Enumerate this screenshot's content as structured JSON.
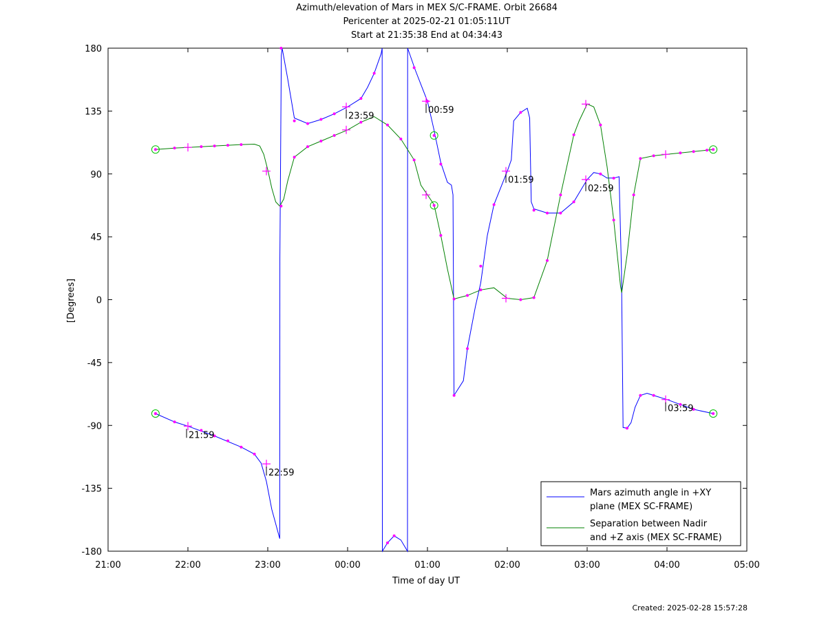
{
  "chart_data": {
    "type": "line",
    "title": [
      "Azimuth/elevation of Mars in MEX S/C-FRAME.  Orbit 26684",
      "Pericenter at 2025-02-21 01:05:11UT",
      "Start at 21:35:38 End at 04:34:43"
    ],
    "xlabel": "Time of day UT",
    "ylabel": "[Degrees]",
    "xlim": [
      21,
      29
    ],
    "ylim": [
      -180,
      180
    ],
    "x_ticks": [
      21,
      22,
      23,
      24,
      25,
      26,
      27,
      28,
      29
    ],
    "x_tick_labels": [
      "21:00",
      "22:00",
      "23:00",
      "00:00",
      "01:00",
      "02:00",
      "03:00",
      "04:00",
      "05:00"
    ],
    "y_ticks": [
      180,
      135,
      90,
      45,
      0,
      -45,
      -90,
      -135,
      -180
    ],
    "y_tick_labels": [
      "180",
      "135",
      "90",
      "45",
      "0",
      "-45",
      "-90",
      "-135",
      "-180"
    ],
    "legend": {
      "position": "bottom-right",
      "entries": [
        [
          "Mars azimuth angle in +XY",
          "plane (MEX SC-FRAME)"
        ],
        [
          "Separation between Nadir",
          "and +Z axis (MEX SC-FRAME)"
        ]
      ]
    },
    "series": [
      {
        "name": "Mars azimuth angle in +XY plane (MEX SC-FRAME)",
        "color": "#0000ff",
        "points": [
          [
            21.594,
            -81.5
          ],
          [
            21.833,
            -87.5
          ],
          [
            22.0,
            -90.5
          ],
          [
            22.333,
            -97.5
          ],
          [
            22.667,
            -105.5
          ],
          [
            22.833,
            -110.5
          ],
          [
            22.917,
            -117.0
          ],
          [
            22.983,
            -130.0
          ],
          [
            23.05,
            -150.0
          ],
          [
            23.15,
            -171.0
          ],
          [
            23.152,
            30.0
          ],
          [
            23.17,
            175.0
          ],
          [
            23.18,
            180.0
          ],
          [
            23.25,
            158.0
          ],
          [
            23.333,
            130.0
          ],
          [
            23.5,
            126.0
          ],
          [
            23.667,
            129.0
          ],
          [
            23.833,
            133.0
          ],
          [
            24.0,
            138.0
          ],
          [
            24.167,
            144.0
          ],
          [
            24.25,
            152.0
          ],
          [
            24.333,
            162.0
          ],
          [
            24.42,
            176.0
          ],
          [
            24.433,
            180.0
          ],
          [
            24.435,
            -180.0
          ],
          [
            24.5,
            -174.0
          ],
          [
            24.583,
            -169.0
          ],
          [
            24.667,
            -172.0
          ],
          [
            24.75,
            -180.0
          ],
          [
            24.752,
            180.0
          ],
          [
            24.85,
            164.0
          ],
          [
            25.0,
            142.0
          ],
          [
            25.08,
            122.0
          ],
          [
            25.167,
            98.0
          ],
          [
            25.25,
            84.0
          ],
          [
            25.3,
            82.0
          ],
          [
            25.32,
            75.0
          ],
          [
            25.333,
            -68.5
          ],
          [
            25.45,
            -58.0
          ],
          [
            25.5,
            -35.0
          ],
          [
            25.6,
            -5.0
          ],
          [
            25.667,
            12.0
          ],
          [
            25.75,
            46.0
          ],
          [
            25.833,
            68.0
          ],
          [
            26.0,
            92.0
          ],
          [
            26.05,
            100.0
          ],
          [
            26.08,
            128.0
          ],
          [
            26.167,
            134.0
          ],
          [
            26.25,
            137.0
          ],
          [
            26.28,
            130.0
          ],
          [
            26.3,
            70.0
          ],
          [
            26.333,
            65.0
          ],
          [
            26.5,
            62.0
          ],
          [
            26.667,
            62.0
          ],
          [
            26.833,
            70.0
          ],
          [
            27.0,
            86.0
          ],
          [
            27.083,
            91.0
          ],
          [
            27.167,
            90.0
          ],
          [
            27.25,
            87.0
          ],
          [
            27.333,
            87.0
          ],
          [
            27.4,
            88.0
          ],
          [
            27.43,
            20.0
          ],
          [
            27.45,
            -91.5
          ],
          [
            27.5,
            -92.0
          ],
          [
            27.55,
            -88.0
          ],
          [
            27.6,
            -77.0
          ],
          [
            27.667,
            -68.5
          ],
          [
            27.75,
            -67.0
          ],
          [
            27.833,
            -68.5
          ],
          [
            28.0,
            -71.5
          ],
          [
            28.167,
            -75.0
          ],
          [
            28.333,
            -78.5
          ],
          [
            28.579,
            -81.5
          ]
        ]
      },
      {
        "name": "Separation between Nadir and +Z axis (MEX SC-FRAME)",
        "color": "#008000",
        "points": [
          [
            21.594,
            107.5
          ],
          [
            21.667,
            107.8
          ],
          [
            21.833,
            108.5
          ],
          [
            22.0,
            109.0
          ],
          [
            22.167,
            109.5
          ],
          [
            22.333,
            110.0
          ],
          [
            22.5,
            110.5
          ],
          [
            22.667,
            111.0
          ],
          [
            22.833,
            111.3
          ],
          [
            22.9,
            110.0
          ],
          [
            22.95,
            104.0
          ],
          [
            23.0,
            93.0
          ],
          [
            23.05,
            80.0
          ],
          [
            23.1,
            70.0
          ],
          [
            23.15,
            67.0
          ],
          [
            23.2,
            72.0
          ],
          [
            23.25,
            85.0
          ],
          [
            23.333,
            102.0
          ],
          [
            23.5,
            109.5
          ],
          [
            23.667,
            113.5
          ],
          [
            23.833,
            117.5
          ],
          [
            24.0,
            121.5
          ],
          [
            24.167,
            127.0
          ],
          [
            24.333,
            131.0
          ],
          [
            24.5,
            125.0
          ],
          [
            24.667,
            115.0
          ],
          [
            24.833,
            100.0
          ],
          [
            24.917,
            82.0
          ],
          [
            25.0,
            75.0
          ],
          [
            25.083,
            68.0
          ],
          [
            25.167,
            46.0
          ],
          [
            25.25,
            22.0
          ],
          [
            25.333,
            0.5
          ],
          [
            25.5,
            3.0
          ],
          [
            25.667,
            7.0
          ],
          [
            25.833,
            8.5
          ],
          [
            26.0,
            1.0
          ],
          [
            26.167,
            0.0
          ],
          [
            26.333,
            1.5
          ],
          [
            26.5,
            28.0
          ],
          [
            26.667,
            75.0
          ],
          [
            26.833,
            118.0
          ],
          [
            26.9,
            128.0
          ],
          [
            27.0,
            140.0
          ],
          [
            27.083,
            138.0
          ],
          [
            27.167,
            125.0
          ],
          [
            27.25,
            95.0
          ],
          [
            27.333,
            57.0
          ],
          [
            27.417,
            10.0
          ],
          [
            27.433,
            5.0
          ],
          [
            27.5,
            32.0
          ],
          [
            27.583,
            75.0
          ],
          [
            27.667,
            101.0
          ],
          [
            27.833,
            103.0
          ],
          [
            28.0,
            104.0
          ],
          [
            28.167,
            105.0
          ],
          [
            28.333,
            106.0
          ],
          [
            28.5,
            107.0
          ],
          [
            28.579,
            107.5
          ]
        ]
      }
    ],
    "marker_color": "#ff00ff",
    "circle_color": "#00c000",
    "dots": [
      [
        21.594,
        -81.5
      ],
      [
        21.833,
        -87.5
      ],
      [
        22.167,
        -93.5
      ],
      [
        22.333,
        -97.5
      ],
      [
        22.5,
        -101.0
      ],
      [
        22.667,
        -105.5
      ],
      [
        22.833,
        -110.5
      ],
      [
        23.167,
        180.0
      ],
      [
        23.333,
        128.0
      ],
      [
        23.5,
        126.0
      ],
      [
        23.667,
        129.0
      ],
      [
        23.833,
        133.0
      ],
      [
        24.167,
        144.0
      ],
      [
        24.333,
        162.0
      ],
      [
        24.5,
        -174.0
      ],
      [
        24.583,
        -169.0
      ],
      [
        24.833,
        166.0
      ],
      [
        25.0,
        142.0
      ],
      [
        25.167,
        97.0
      ],
      [
        25.333,
        -68.5
      ],
      [
        25.5,
        -35.0
      ],
      [
        25.667,
        24.0
      ],
      [
        25.833,
        68.0
      ],
      [
        26.167,
        134.0
      ],
      [
        26.333,
        64.0
      ],
      [
        26.5,
        62.0
      ],
      [
        26.667,
        62.0
      ],
      [
        26.833,
        70.0
      ],
      [
        27.167,
        90.0
      ],
      [
        27.333,
        87.0
      ],
      [
        27.5,
        -92.0
      ],
      [
        27.667,
        -68.5
      ],
      [
        27.833,
        -68.5
      ],
      [
        28.167,
        -75.0
      ],
      [
        28.333,
        -78.5
      ],
      [
        21.833,
        108.5
      ],
      [
        22.167,
        109.5
      ],
      [
        22.333,
        110.0
      ],
      [
        22.5,
        110.5
      ],
      [
        22.667,
        111.0
      ],
      [
        23.167,
        67.0
      ],
      [
        23.333,
        102.0
      ],
      [
        23.5,
        109.5
      ],
      [
        23.667,
        113.5
      ],
      [
        23.833,
        117.5
      ],
      [
        24.167,
        127.0
      ],
      [
        24.5,
        125.0
      ],
      [
        24.667,
        115.0
      ],
      [
        24.833,
        100.0
      ],
      [
        25.167,
        46.0
      ],
      [
        25.333,
        0.5
      ],
      [
        25.5,
        3.0
      ],
      [
        25.667,
        7.0
      ],
      [
        26.167,
        0.0
      ],
      [
        26.333,
        1.5
      ],
      [
        26.5,
        28.0
      ],
      [
        26.667,
        75.0
      ],
      [
        26.833,
        118.0
      ],
      [
        27.167,
        125.0
      ],
      [
        27.333,
        57.0
      ],
      [
        27.583,
        75.0
      ],
      [
        27.667,
        101.0
      ],
      [
        27.833,
        103.0
      ],
      [
        28.167,
        105.0
      ],
      [
        28.333,
        106.0
      ],
      [
        28.5,
        107.0
      ]
    ],
    "hour_crosses": [
      [
        22.0,
        -90.5
      ],
      [
        22.0,
        109.0
      ],
      [
        22.983,
        -117.5
      ],
      [
        22.983,
        92.0
      ],
      [
        23.983,
        138.0
      ],
      [
        23.983,
        121.5
      ],
      [
        24.983,
        142.0
      ],
      [
        24.983,
        75.0
      ],
      [
        25.983,
        92.0
      ],
      [
        25.983,
        1.0
      ],
      [
        26.983,
        86.0
      ],
      [
        26.983,
        140.0
      ],
      [
        27.983,
        -71.5
      ],
      [
        27.983,
        104.0
      ]
    ],
    "hour_labels": [
      {
        "x": 21.983,
        "y": -90.5,
        "text": "21:59"
      },
      {
        "x": 22.983,
        "y": -117.5,
        "text": "22:59"
      },
      {
        "x": 23.983,
        "y": 138.0,
        "text": "23:59"
      },
      {
        "x": 24.983,
        "y": 142.0,
        "text": "00:59"
      },
      {
        "x": 25.983,
        "y": 92.0,
        "text": "01:59"
      },
      {
        "x": 26.983,
        "y": 86.0,
        "text": "02:59"
      },
      {
        "x": 27.983,
        "y": -71.5,
        "text": "03:59"
      }
    ],
    "circles": [
      [
        21.594,
        -81.5
      ],
      [
        21.594,
        107.5
      ],
      [
        25.083,
        117.5
      ],
      [
        25.083,
        67.5
      ],
      [
        28.579,
        -81.5
      ],
      [
        28.579,
        107.5
      ]
    ]
  },
  "footer": {
    "created": "Created: 2025-02-28 15:57:28"
  }
}
